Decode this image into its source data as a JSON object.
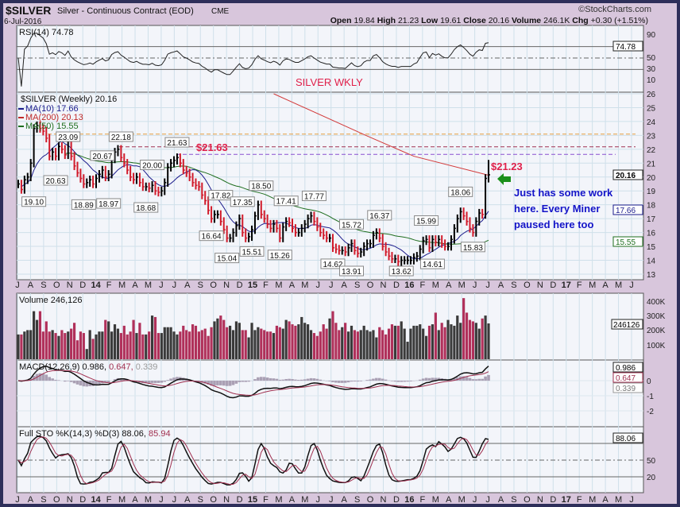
{
  "header": {
    "symbol": "$SILVER",
    "name": "Silver - Continuous Contract (EOD)",
    "exchange": "CME",
    "date": "6-Jul-2016",
    "brand": "©StockCharts.com",
    "ohlc": {
      "open_label": "Open",
      "open": "19.84",
      "high_label": "High",
      "high": "21.23",
      "low_label": "Low",
      "low": "19.61",
      "close_label": "Close",
      "close": "20.16",
      "volume_label": "Volume",
      "volume": "246.1K",
      "chg_label": "Chg",
      "chg": "+0.30 (+1.51%)"
    }
  },
  "rsi": {
    "legend": "RSI(14) 74.78",
    "value_tag": "74.78",
    "ticks": [
      "90",
      "50",
      "30",
      "10"
    ],
    "levels": [
      70,
      50,
      30
    ]
  },
  "price": {
    "legend_main": "$SILVER (Weekly) 20.16",
    "legend_ma10": "MA(10) 17.66",
    "legend_ma200": "MA(200) 20.13",
    "legend_ma50": "MA(50) 15.55",
    "title_note": "SILVER WKLY",
    "tags": {
      "close": "20.16",
      "ma10": "17.66",
      "ma50": "15.55"
    },
    "ticks": [
      "26",
      "25",
      "24",
      "23",
      "22",
      "21",
      "20",
      "19",
      "18",
      "17",
      "16",
      "15",
      "14",
      "13"
    ],
    "note_2163": "$21.63",
    "note_2123": "$21.23",
    "comment": [
      "Just has some work",
      "here. Every Miner",
      "paused here too"
    ],
    "arrow_icon": "green-left-arrow"
  },
  "volume": {
    "legend": "Volume 246,126",
    "value_tag": "246126",
    "ticks": [
      "400K",
      "300K",
      "200K",
      "100K"
    ]
  },
  "macd": {
    "legend_main": "MACD(12,26,9) 0.986,",
    "legend_signal": "0.647,",
    "legend_hist": "0.339",
    "tags": [
      "0.986",
      "0.647",
      "0.339"
    ],
    "ticks": [
      "0",
      "-1",
      "-2"
    ]
  },
  "sto": {
    "legend_main": "Full STO %K(14,3) %D(3) 88.06,",
    "legend_d": "85.94",
    "value_tag": "88.06",
    "ticks": [
      "50",
      "20"
    ],
    "levels": [
      80,
      50,
      20
    ]
  },
  "months": [
    "J",
    "A",
    "S",
    "O",
    "N",
    "D",
    "14",
    "F",
    "M",
    "A",
    "M",
    "J",
    "J",
    "A",
    "S",
    "O",
    "N",
    "D",
    "15",
    "F",
    "M",
    "A",
    "M",
    "J",
    "J",
    "A",
    "S",
    "O",
    "N",
    "D",
    "16",
    "F",
    "M",
    "A",
    "M",
    "J",
    "J",
    "A",
    "S",
    "O",
    "N",
    "D",
    "17",
    "F",
    "M",
    "A",
    "M",
    "J"
  ],
  "colors": {
    "up": "#000000",
    "down": "#d11a2a",
    "ma10": "#1c1c8c",
    "ma50": "#1f6e1f",
    "ma200": "#d33a3a",
    "vol_up": "#3a3a3a",
    "vol_down": "#b0305a",
    "note": "#e0204a",
    "comment": "#1414c8",
    "arrow": "#1a8f1a",
    "line_23": "#e8a040",
    "line_22": "#a03050",
    "line_2163": "#8a50d0"
  },
  "chart_data": {
    "type": "bar",
    "interval": "weekly",
    "ylim": [
      13,
      26
    ],
    "price_scale_ticks": [
      13,
      14,
      15,
      16,
      17,
      18,
      19,
      20,
      21,
      22,
      23,
      24,
      25,
      26
    ],
    "closes": [
      19.5,
      19.1,
      19.8,
      20.0,
      21.0,
      23.5,
      23.7,
      23.5,
      23.3,
      22.8,
      21.5,
      21.8,
      21.5,
      22.2,
      22.0,
      21.6,
      22.6,
      21.5,
      20.8,
      20.3,
      19.9,
      19.5,
      19.6,
      19.8,
      19.5,
      19.9,
      20.2,
      20.5,
      20.0,
      20.2,
      21.3,
      21.8,
      22.0,
      21.4,
      21.0,
      20.5,
      20.0,
      19.8,
      20.0,
      19.6,
      19.3,
      19.3,
      19.2,
      19.4,
      19.0,
      18.9,
      19.0,
      19.6,
      20.7,
      21.0,
      21.2,
      21.4,
      21.0,
      20.5,
      20.3,
      20.0,
      19.6,
      19.4,
      19.3,
      18.7,
      18.3,
      17.6,
      17.0,
      17.3,
      17.3,
      16.8,
      16.2,
      15.6,
      15.6,
      16.0,
      16.5,
      17.0,
      16.0,
      15.6,
      15.7,
      16.2,
      17.2,
      18.0,
      17.3,
      17.0,
      16.6,
      16.3,
      16.6,
      16.3,
      15.6,
      16.4,
      16.8,
      16.7,
      16.3,
      16.0,
      16.0,
      16.3,
      16.6,
      17.0,
      17.2,
      16.8,
      16.4,
      16.0,
      15.8,
      15.6,
      15.6,
      14.9,
      14.8,
      14.7,
      14.7,
      14.6,
      14.9,
      15.2,
      14.7,
      14.5,
      14.6,
      15.0,
      15.2,
      15.2,
      15.8,
      16.0,
      15.6,
      15.0,
      14.6,
      14.3,
      14.1,
      14.1,
      13.9,
      14.0,
      14.0,
      14.0,
      14.0,
      14.2,
      14.3,
      14.8,
      15.4,
      15.5,
      14.9,
      15.5,
      15.3,
      15.5,
      15.2,
      15.0,
      15.0,
      15.5,
      16.3,
      17.0,
      17.5,
      17.2,
      16.8,
      16.3,
      16.0,
      16.8,
      17.4,
      17.3,
      19.9,
      20.16
    ],
    "volume_k": [
      170,
      170,
      190,
      200,
      200,
      330,
      270,
      330,
      190,
      260,
      190,
      200,
      180,
      160,
      200,
      180,
      190,
      210,
      250,
      130,
      190,
      180,
      70,
      200,
      140,
      170,
      190,
      190,
      270,
      260,
      190,
      240,
      210,
      180,
      230,
      170,
      190,
      270,
      180,
      250,
      170,
      170,
      190,
      300,
      290,
      180,
      180,
      220,
      220,
      220,
      190,
      170,
      190,
      230,
      200,
      190,
      240,
      230,
      190,
      200,
      210,
      160,
      220,
      260,
      280,
      300,
      270,
      220,
      230,
      200,
      260,
      250,
      200,
      200,
      150,
      250,
      200,
      220,
      210,
      200,
      190,
      190,
      180,
      230,
      220,
      210,
      270,
      260,
      240,
      230,
      240,
      290,
      250,
      240,
      200,
      180,
      160,
      190,
      240,
      210,
      280,
      330,
      250,
      200,
      220,
      250,
      190,
      230,
      200,
      190,
      200,
      230,
      200,
      190,
      200,
      150,
      220,
      200,
      170,
      210,
      240,
      230,
      230,
      260,
      210,
      120,
      210,
      230,
      230,
      240,
      210,
      160,
      230,
      240,
      320,
      200,
      250,
      220,
      270,
      240,
      230,
      300,
      250,
      420,
      320,
      270,
      260,
      250,
      210,
      280,
      300,
      246
    ],
    "ma200": [
      [
        82,
        26.0
      ],
      [
        112,
        22.96
      ],
      [
        127,
        21.5
      ],
      [
        151,
        20.13
      ]
    ],
    "horizontal_lines": [
      23.09,
      22.18,
      21.63
    ],
    "annotations": [
      {
        "label": "23.09",
        "week": 16,
        "pos": "above"
      },
      {
        "label": "20.63",
        "week": 12,
        "pos": "below"
      },
      {
        "label": "19.10",
        "week": 5,
        "pos": "below"
      },
      {
        "label": "22.18",
        "week": 33,
        "pos": "above"
      },
      {
        "label": "20.67",
        "week": 27,
        "pos": "above"
      },
      {
        "label": "18.89",
        "week": 21,
        "pos": "below"
      },
      {
        "label": "18.97",
        "week": 29,
        "pos": "below"
      },
      {
        "label": "20.00",
        "week": 43,
        "pos": "above"
      },
      {
        "label": "18.68",
        "week": 41,
        "pos": "below"
      },
      {
        "label": "21.63",
        "week": 51,
        "pos": "above"
      },
      {
        "label": "17.82",
        "week": 65,
        "pos": "above"
      },
      {
        "label": "16.64",
        "week": 62,
        "pos": "below"
      },
      {
        "label": "17.35",
        "week": 72,
        "pos": "above"
      },
      {
        "label": "15.04",
        "week": 67,
        "pos": "below"
      },
      {
        "label": "15.51",
        "week": 75,
        "pos": "below"
      },
      {
        "label": "18.50",
        "week": 78,
        "pos": "above"
      },
      {
        "label": "17.41",
        "week": 86,
        "pos": "above"
      },
      {
        "label": "15.26",
        "week": 84,
        "pos": "below"
      },
      {
        "label": "17.77",
        "week": 95,
        "pos": "above"
      },
      {
        "label": "14.62",
        "week": 101,
        "pos": "below"
      },
      {
        "label": "15.72",
        "week": 107,
        "pos": "above"
      },
      {
        "label": "13.91",
        "week": 107,
        "pos": "below"
      },
      {
        "label": "16.37",
        "week": 116,
        "pos": "above"
      },
      {
        "label": "13.62",
        "week": 123,
        "pos": "below"
      },
      {
        "label": "15.99",
        "week": 131,
        "pos": "above"
      },
      {
        "label": "14.61",
        "week": 133,
        "pos": "below"
      },
      {
        "label": "18.06",
        "week": 142,
        "pos": "above"
      },
      {
        "label": "15.83",
        "week": 146,
        "pos": "below"
      }
    ]
  }
}
